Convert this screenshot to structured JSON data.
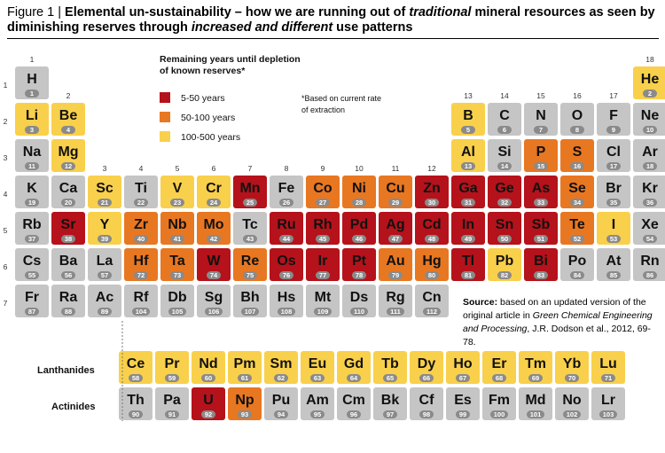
{
  "title": {
    "figure_label": "Figure 1",
    "separator": "|",
    "part1": "Elemental un-sustainability – how we are running out of ",
    "italic1": "traditional",
    "part2": " mineral resources as seen by diminishing reserves through ",
    "italic2": "increased and different",
    "part3": " use patterns"
  },
  "legend": {
    "title_line1": "Remaining years until depletion",
    "title_line2": "of known reserves*",
    "items": [
      {
        "label": "5-50 years",
        "color": "#b5121b"
      },
      {
        "label": "50-100 years",
        "color": "#e87722"
      },
      {
        "label": "100-500 years",
        "color": "#f9d04b"
      }
    ],
    "note_line1": "*Based on current rate",
    "note_line2": "of extraction"
  },
  "source": {
    "label": "Source:",
    "text1": " based on an updated version of the original article in ",
    "journal": "Green Chemical Engineering and Processing",
    "text2": ", J.R. Dodson et al., 2012, 69-78."
  },
  "row_labels": {
    "lanthanides": "Lanthanides",
    "actinides": "Actinides"
  },
  "colors": {
    "red": "#b5121b",
    "orange": "#e87722",
    "yellow": "#f9d04b",
    "grey": "#c5c5c5",
    "number_badge": "#8a8a8a"
  },
  "chart_data": {
    "type": "table",
    "group_labels": [
      "1",
      "2",
      "3",
      "4",
      "5",
      "6",
      "7",
      "8",
      "9",
      "10",
      "11",
      "12",
      "13",
      "14",
      "15",
      "16",
      "17",
      "18"
    ],
    "period_labels": [
      "1",
      "2",
      "3",
      "4",
      "5",
      "6",
      "7"
    ],
    "elements": [
      {
        "symbol": "H",
        "number": 1,
        "period": 1,
        "group": 1,
        "depletion": "none"
      },
      {
        "symbol": "He",
        "number": 2,
        "period": 1,
        "group": 18,
        "depletion": "100-500 years"
      },
      {
        "symbol": "Li",
        "number": 3,
        "period": 2,
        "group": 1,
        "depletion": "100-500 years"
      },
      {
        "symbol": "Be",
        "number": 4,
        "period": 2,
        "group": 2,
        "depletion": "100-500 years"
      },
      {
        "symbol": "B",
        "number": 5,
        "period": 2,
        "group": 13,
        "depletion": "100-500 years"
      },
      {
        "symbol": "C",
        "number": 6,
        "period": 2,
        "group": 14,
        "depletion": "none"
      },
      {
        "symbol": "N",
        "number": 7,
        "period": 2,
        "group": 15,
        "depletion": "none"
      },
      {
        "symbol": "O",
        "number": 8,
        "period": 2,
        "group": 16,
        "depletion": "none"
      },
      {
        "symbol": "F",
        "number": 9,
        "period": 2,
        "group": 17,
        "depletion": "none"
      },
      {
        "symbol": "Ne",
        "number": 10,
        "period": 2,
        "group": 18,
        "depletion": "none"
      },
      {
        "symbol": "Na",
        "number": 11,
        "period": 3,
        "group": 1,
        "depletion": "none"
      },
      {
        "symbol": "Mg",
        "number": 12,
        "period": 3,
        "group": 2,
        "depletion": "100-500 years"
      },
      {
        "symbol": "Al",
        "number": 13,
        "period": 3,
        "group": 13,
        "depletion": "100-500 years"
      },
      {
        "symbol": "Si",
        "number": 14,
        "period": 3,
        "group": 14,
        "depletion": "none"
      },
      {
        "symbol": "P",
        "number": 15,
        "period": 3,
        "group": 15,
        "depletion": "50-100 years"
      },
      {
        "symbol": "S",
        "number": 16,
        "period": 3,
        "group": 16,
        "depletion": "50-100 years"
      },
      {
        "symbol": "Cl",
        "number": 17,
        "period": 3,
        "group": 17,
        "depletion": "none"
      },
      {
        "symbol": "Ar",
        "number": 18,
        "period": 3,
        "group": 18,
        "depletion": "none"
      },
      {
        "symbol": "K",
        "number": 19,
        "period": 4,
        "group": 1,
        "depletion": "none"
      },
      {
        "symbol": "Ca",
        "number": 20,
        "period": 4,
        "group": 2,
        "depletion": "none"
      },
      {
        "symbol": "Sc",
        "number": 21,
        "period": 4,
        "group": 3,
        "depletion": "100-500 years"
      },
      {
        "symbol": "Ti",
        "number": 22,
        "period": 4,
        "group": 4,
        "depletion": "none"
      },
      {
        "symbol": "V",
        "number": 23,
        "period": 4,
        "group": 5,
        "depletion": "100-500 years"
      },
      {
        "symbol": "Cr",
        "number": 24,
        "period": 4,
        "group": 6,
        "depletion": "100-500 years"
      },
      {
        "symbol": "Mn",
        "number": 25,
        "period": 4,
        "group": 7,
        "depletion": "5-50 years"
      },
      {
        "symbol": "Fe",
        "number": 26,
        "period": 4,
        "group": 8,
        "depletion": "none"
      },
      {
        "symbol": "Co",
        "number": 27,
        "period": 4,
        "group": 9,
        "depletion": "50-100 years"
      },
      {
        "symbol": "Ni",
        "number": 28,
        "period": 4,
        "group": 10,
        "depletion": "50-100 years"
      },
      {
        "symbol": "Cu",
        "number": 29,
        "period": 4,
        "group": 11,
        "depletion": "50-100 years"
      },
      {
        "symbol": "Zn",
        "number": 30,
        "period": 4,
        "group": 12,
        "depletion": "5-50 years"
      },
      {
        "symbol": "Ga",
        "number": 31,
        "period": 4,
        "group": 13,
        "depletion": "5-50 years"
      },
      {
        "symbol": "Ge",
        "number": 32,
        "period": 4,
        "group": 14,
        "depletion": "5-50 years"
      },
      {
        "symbol": "As",
        "number": 33,
        "period": 4,
        "group": 15,
        "depletion": "5-50 years"
      },
      {
        "symbol": "Se",
        "number": 34,
        "period": 4,
        "group": 16,
        "depletion": "50-100 years"
      },
      {
        "symbol": "Br",
        "number": 35,
        "period": 4,
        "group": 17,
        "depletion": "none"
      },
      {
        "symbol": "Kr",
        "number": 36,
        "period": 4,
        "group": 18,
        "depletion": "none"
      },
      {
        "symbol": "Rb",
        "number": 37,
        "period": 5,
        "group": 1,
        "depletion": "none"
      },
      {
        "symbol": "Sr",
        "number": 38,
        "period": 5,
        "group": 2,
        "depletion": "5-50 years"
      },
      {
        "symbol": "Y",
        "number": 39,
        "period": 5,
        "group": 3,
        "depletion": "100-500 years"
      },
      {
        "symbol": "Zr",
        "number": 40,
        "period": 5,
        "group": 4,
        "depletion": "50-100 years"
      },
      {
        "symbol": "Nb",
        "number": 41,
        "period": 5,
        "group": 5,
        "depletion": "50-100 years"
      },
      {
        "symbol": "Mo",
        "number": 42,
        "period": 5,
        "group": 6,
        "depletion": "50-100 years"
      },
      {
        "symbol": "Tc",
        "number": 43,
        "period": 5,
        "group": 7,
        "depletion": "none"
      },
      {
        "symbol": "Ru",
        "number": 44,
        "period": 5,
        "group": 8,
        "depletion": "5-50 years"
      },
      {
        "symbol": "Rh",
        "number": 45,
        "period": 5,
        "group": 9,
        "depletion": "5-50 years"
      },
      {
        "symbol": "Pd",
        "number": 46,
        "period": 5,
        "group": 10,
        "depletion": "5-50 years"
      },
      {
        "symbol": "Ag",
        "number": 47,
        "period": 5,
        "group": 11,
        "depletion": "5-50 years"
      },
      {
        "symbol": "Cd",
        "number": 48,
        "period": 5,
        "group": 12,
        "depletion": "5-50 years"
      },
      {
        "symbol": "In",
        "number": 49,
        "period": 5,
        "group": 13,
        "depletion": "5-50 years"
      },
      {
        "symbol": "Sn",
        "number": 50,
        "period": 5,
        "group": 14,
        "depletion": "5-50 years"
      },
      {
        "symbol": "Sb",
        "number": 51,
        "period": 5,
        "group": 15,
        "depletion": "5-50 years"
      },
      {
        "symbol": "Te",
        "number": 52,
        "period": 5,
        "group": 16,
        "depletion": "50-100 years"
      },
      {
        "symbol": "I",
        "number": 53,
        "period": 5,
        "group": 17,
        "depletion": "100-500 years"
      },
      {
        "symbol": "Xe",
        "number": 54,
        "period": 5,
        "group": 18,
        "depletion": "none"
      },
      {
        "symbol": "Cs",
        "number": 55,
        "period": 6,
        "group": 1,
        "depletion": "none"
      },
      {
        "symbol": "Ba",
        "number": 56,
        "period": 6,
        "group": 2,
        "depletion": "none"
      },
      {
        "symbol": "La",
        "number": 57,
        "period": 6,
        "group": 3,
        "depletion": "none"
      },
      {
        "symbol": "Hf",
        "number": 72,
        "period": 6,
        "group": 4,
        "depletion": "50-100 years"
      },
      {
        "symbol": "Ta",
        "number": 73,
        "period": 6,
        "group": 5,
        "depletion": "50-100 years"
      },
      {
        "symbol": "W",
        "number": 74,
        "period": 6,
        "group": 6,
        "depletion": "5-50 years"
      },
      {
        "symbol": "Re",
        "number": 75,
        "period": 6,
        "group": 7,
        "depletion": "50-100 years"
      },
      {
        "symbol": "Os",
        "number": 76,
        "period": 6,
        "group": 8,
        "depletion": "5-50 years"
      },
      {
        "symbol": "Ir",
        "number": 77,
        "period": 6,
        "group": 9,
        "depletion": "5-50 years"
      },
      {
        "symbol": "Pt",
        "number": 78,
        "period": 6,
        "group": 10,
        "depletion": "5-50 years"
      },
      {
        "symbol": "Au",
        "number": 79,
        "period": 6,
        "group": 11,
        "depletion": "50-100 years"
      },
      {
        "symbol": "Hg",
        "number": 80,
        "period": 6,
        "group": 12,
        "depletion": "50-100 years"
      },
      {
        "symbol": "Tl",
        "number": 81,
        "period": 6,
        "group": 13,
        "depletion": "5-50 years"
      },
      {
        "symbol": "Pb",
        "number": 82,
        "period": 6,
        "group": 14,
        "depletion": "100-500 years"
      },
      {
        "symbol": "Bi",
        "number": 83,
        "period": 6,
        "group": 15,
        "depletion": "5-50 years"
      },
      {
        "symbol": "Po",
        "number": 84,
        "period": 6,
        "group": 16,
        "depletion": "none"
      },
      {
        "symbol": "At",
        "number": 85,
        "period": 6,
        "group": 17,
        "depletion": "none"
      },
      {
        "symbol": "Rn",
        "number": 86,
        "period": 6,
        "group": 18,
        "depletion": "none"
      },
      {
        "symbol": "Fr",
        "number": 87,
        "period": 7,
        "group": 1,
        "depletion": "none"
      },
      {
        "symbol": "Ra",
        "number": 88,
        "period": 7,
        "group": 2,
        "depletion": "none"
      },
      {
        "symbol": "Ac",
        "number": 89,
        "period": 7,
        "group": 3,
        "depletion": "none"
      },
      {
        "symbol": "Rf",
        "number": 104,
        "period": 7,
        "group": 4,
        "depletion": "none"
      },
      {
        "symbol": "Db",
        "number": 105,
        "period": 7,
        "group": 5,
        "depletion": "none"
      },
      {
        "symbol": "Sg",
        "number": 106,
        "period": 7,
        "group": 6,
        "depletion": "none"
      },
      {
        "symbol": "Bh",
        "number": 107,
        "period": 7,
        "group": 7,
        "depletion": "none"
      },
      {
        "symbol": "Hs",
        "number": 108,
        "period": 7,
        "group": 8,
        "depletion": "none"
      },
      {
        "symbol": "Mt",
        "number": 109,
        "period": 7,
        "group": 9,
        "depletion": "none"
      },
      {
        "symbol": "Ds",
        "number": 110,
        "period": 7,
        "group": 10,
        "depletion": "none"
      },
      {
        "symbol": "Rg",
        "number": 111,
        "period": 7,
        "group": 11,
        "depletion": "none"
      },
      {
        "symbol": "Cn",
        "number": 112,
        "period": 7,
        "group": 12,
        "depletion": "none"
      }
    ],
    "lanthanides": [
      {
        "symbol": "Ce",
        "number": 58,
        "depletion": "100-500 years"
      },
      {
        "symbol": "Pr",
        "number": 59,
        "depletion": "100-500 years"
      },
      {
        "symbol": "Nd",
        "number": 60,
        "depletion": "100-500 years"
      },
      {
        "symbol": "Pm",
        "number": 61,
        "depletion": "100-500 years"
      },
      {
        "symbol": "Sm",
        "number": 62,
        "depletion": "100-500 years"
      },
      {
        "symbol": "Eu",
        "number": 63,
        "depletion": "100-500 years"
      },
      {
        "symbol": "Gd",
        "number": 64,
        "depletion": "100-500 years"
      },
      {
        "symbol": "Tb",
        "number": 65,
        "depletion": "100-500 years"
      },
      {
        "symbol": "Dy",
        "number": 66,
        "depletion": "100-500 years"
      },
      {
        "symbol": "Ho",
        "number": 67,
        "depletion": "100-500 years"
      },
      {
        "symbol": "Er",
        "number": 68,
        "depletion": "100-500 years"
      },
      {
        "symbol": "Tm",
        "number": 69,
        "depletion": "100-500 years"
      },
      {
        "symbol": "Yb",
        "number": 70,
        "depletion": "100-500 years"
      },
      {
        "symbol": "Lu",
        "number": 71,
        "depletion": "100-500 years"
      }
    ],
    "actinides": [
      {
        "symbol": "Th",
        "number": 90,
        "depletion": "none"
      },
      {
        "symbol": "Pa",
        "number": 91,
        "depletion": "none"
      },
      {
        "symbol": "U",
        "number": 92,
        "depletion": "5-50 years"
      },
      {
        "symbol": "Np",
        "number": 93,
        "depletion": "50-100 years"
      },
      {
        "symbol": "Pu",
        "number": 94,
        "depletion": "none"
      },
      {
        "symbol": "Am",
        "number": 95,
        "depletion": "none"
      },
      {
        "symbol": "Cm",
        "number": 96,
        "depletion": "none"
      },
      {
        "symbol": "Bk",
        "number": 97,
        "depletion": "none"
      },
      {
        "symbol": "Cf",
        "number": 98,
        "depletion": "none"
      },
      {
        "symbol": "Es",
        "number": 99,
        "depletion": "none"
      },
      {
        "symbol": "Fm",
        "number": 100,
        "depletion": "none"
      },
      {
        "symbol": "Md",
        "number": 101,
        "depletion": "none"
      },
      {
        "symbol": "No",
        "number": 102,
        "depletion": "none"
      },
      {
        "symbol": "Lr",
        "number": 103,
        "depletion": "none"
      }
    ]
  }
}
